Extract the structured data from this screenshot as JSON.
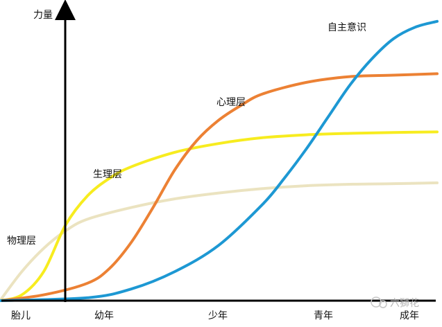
{
  "chart_data": {
    "type": "line",
    "ylabel": "力量",
    "x_ticks": [
      "胎儿",
      "幼年",
      "少年",
      "青年",
      "成年"
    ],
    "x_range": [
      -1,
      4
    ],
    "y_range": [
      0,
      1
    ],
    "series": [
      {
        "name": "物理层",
        "color": "#ebe3c0",
        "x": [
          -1.0,
          -0.75,
          -0.5,
          -0.25,
          0.0,
          0.5,
          1.0,
          1.5,
          2.0,
          2.5,
          3.0,
          3.5,
          4.0
        ],
        "y": [
          0.0,
          0.1,
          0.18,
          0.24,
          0.28,
          0.32,
          0.35,
          0.37,
          0.385,
          0.395,
          0.4,
          0.402,
          0.405
        ]
      },
      {
        "name": "生理层",
        "color": "#f7ec1f",
        "x": [
          -1.0,
          -0.75,
          -0.5,
          -0.25,
          0.0,
          0.25,
          0.5,
          1.0,
          1.5,
          2.0,
          2.5,
          3.0,
          3.5,
          4.0
        ],
        "y": [
          0.0,
          0.02,
          0.1,
          0.26,
          0.36,
          0.42,
          0.46,
          0.51,
          0.54,
          0.56,
          0.57,
          0.575,
          0.578,
          0.58
        ]
      },
      {
        "name": "心理层",
        "color": "#ec8134",
        "x": [
          -1.0,
          -0.5,
          0.0,
          0.25,
          0.5,
          0.75,
          1.0,
          1.25,
          1.5,
          1.75,
          2.0,
          2.5,
          3.0,
          3.5,
          4.0
        ],
        "y": [
          0.0,
          0.02,
          0.06,
          0.11,
          0.2,
          0.32,
          0.45,
          0.55,
          0.62,
          0.67,
          0.71,
          0.75,
          0.77,
          0.775,
          0.78
        ]
      },
      {
        "name": "自主意识",
        "color": "#1d98d3",
        "x": [
          -1.0,
          0.0,
          0.5,
          1.0,
          1.5,
          2.0,
          2.25,
          2.5,
          2.75,
          3.0,
          3.25,
          3.5,
          3.75,
          4.0
        ],
        "y": [
          0.0,
          0.01,
          0.04,
          0.1,
          0.19,
          0.33,
          0.42,
          0.52,
          0.63,
          0.74,
          0.83,
          0.9,
          0.94,
          0.96
        ]
      }
    ],
    "annotations": [
      "自主意识",
      "心理层",
      "生理层",
      "物理层"
    ],
    "grid": false,
    "legend": "none"
  },
  "watermark": "六獅花"
}
